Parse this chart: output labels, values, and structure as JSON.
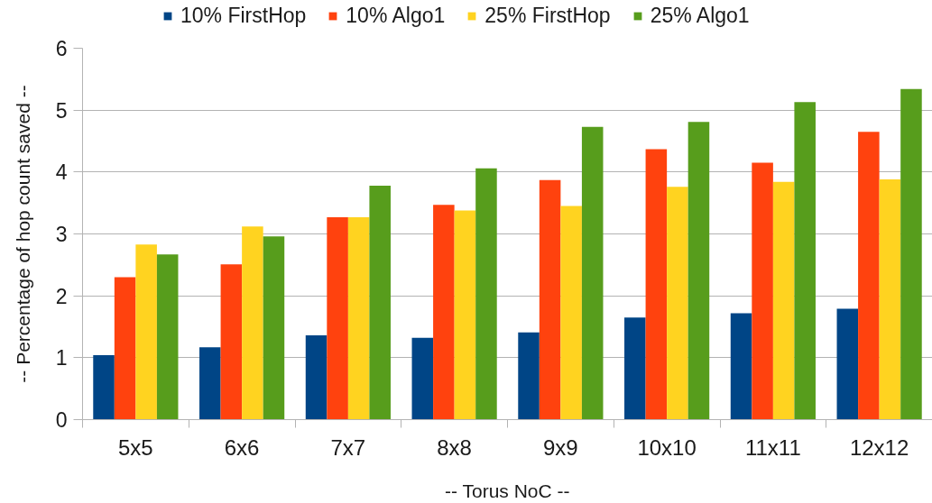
{
  "chart_data": {
    "type": "bar",
    "xlabel": "-- Torus NoC --",
    "ylabel": "-- Percentage of hop count saved --",
    "categories": [
      "5x5",
      "6x6",
      "7x7",
      "8x8",
      "9x9",
      "10x10",
      "11x11",
      "12x12"
    ],
    "series": [
      {
        "name": "10% FirstHop",
        "color": "#004586",
        "values": [
          1.04,
          1.17,
          1.36,
          1.32,
          1.41,
          1.65,
          1.72,
          1.79
        ]
      },
      {
        "name": "10% Algo1",
        "color": "#ff420e",
        "values": [
          2.3,
          2.51,
          3.27,
          3.47,
          3.87,
          4.37,
          4.15,
          4.65
        ]
      },
      {
        "name": "25% FirstHop",
        "color": "#ffd320",
        "values": [
          2.83,
          3.12,
          3.27,
          3.38,
          3.45,
          3.76,
          3.84,
          3.88
        ]
      },
      {
        "name": "25% Algo1",
        "color": "#579d1c",
        "values": [
          2.67,
          2.96,
          3.78,
          4.06,
          4.73,
          4.81,
          5.13,
          5.34
        ]
      }
    ],
    "ylim": [
      0,
      6
    ],
    "yticks": [
      0,
      1,
      2,
      3,
      4,
      5,
      6
    ],
    "grid": "y",
    "legend": "top"
  }
}
